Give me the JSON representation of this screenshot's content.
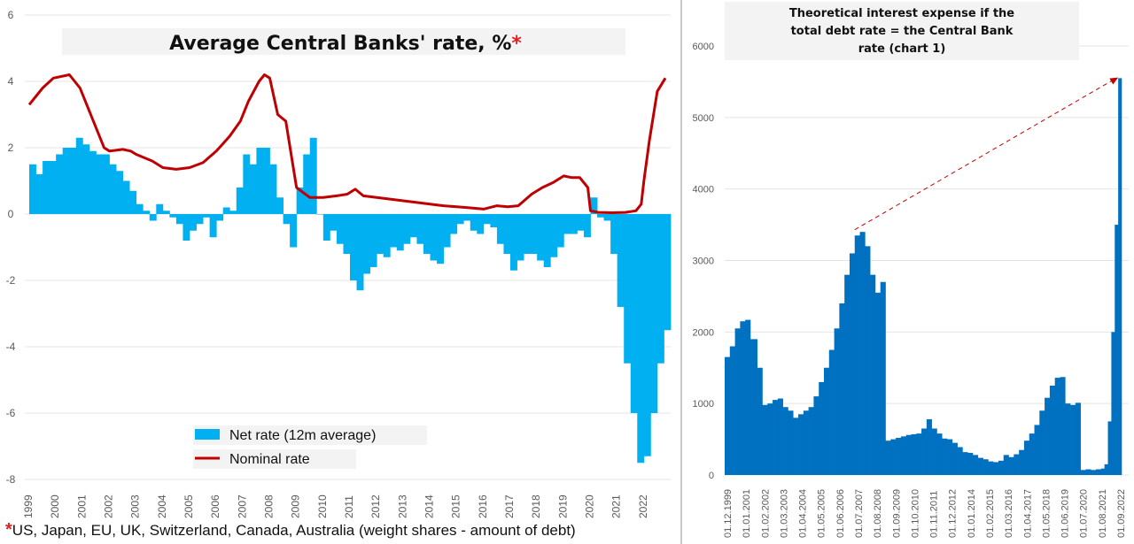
{
  "chart_data": [
    {
      "type": "bar",
      "title": "Average Central Banks' rate, %",
      "title_marker": "*",
      "footnote_marker": "*",
      "footnote": "US, Japan, EU, UK, Switzerland, Canada, Australia (weight shares - amount of debt)",
      "ylim": [
        -8,
        6
      ],
      "y_ticks": [
        "6",
        "4",
        "2",
        "0",
        "-2",
        "-4",
        "-6",
        "-8"
      ],
      "x_ticks": [
        "1999",
        "2000",
        "2001",
        "2002",
        "2003",
        "2004",
        "2005",
        "2006",
        "2007",
        "2008",
        "2009",
        "2010",
        "2011",
        "2012",
        "2013",
        "2014",
        "2015",
        "2016",
        "2017",
        "2018",
        "2019",
        "2020",
        "2021",
        "2022"
      ],
      "grid": true,
      "legend_position": "bottom-center",
      "series": [
        {
          "name": "Net rate (12m average)",
          "kind": "bar",
          "color": "#00b0f0",
          "x": [
            1999.0,
            1999.25,
            1999.5,
            1999.75,
            2000.0,
            2000.25,
            2000.5,
            2000.75,
            2001.0,
            2001.25,
            2001.5,
            2001.75,
            2002.0,
            2002.25,
            2002.5,
            2002.75,
            2003.0,
            2003.25,
            2003.5,
            2003.75,
            2004.0,
            2004.25,
            2004.5,
            2004.75,
            2005.0,
            2005.25,
            2005.5,
            2005.75,
            2006.0,
            2006.25,
            2006.5,
            2006.75,
            2007.0,
            2007.25,
            2007.5,
            2007.75,
            2008.0,
            2008.25,
            2008.5,
            2008.75,
            2009.0,
            2009.25,
            2009.5,
            2009.75,
            2010.0,
            2010.25,
            2010.5,
            2010.75,
            2011.0,
            2011.25,
            2011.5,
            2011.75,
            2012.0,
            2012.25,
            2012.5,
            2012.75,
            2013.0,
            2013.25,
            2013.5,
            2013.75,
            2014.0,
            2014.25,
            2014.5,
            2014.75,
            2015.0,
            2015.25,
            2015.5,
            2015.75,
            2016.0,
            2016.25,
            2016.5,
            2016.75,
            2017.0,
            2017.25,
            2017.5,
            2017.75,
            2018.0,
            2018.25,
            2018.5,
            2018.75,
            2019.0,
            2019.25,
            2019.5,
            2019.75,
            2020.0,
            2020.25,
            2020.5,
            2020.75,
            2021.0,
            2021.25,
            2021.5,
            2021.75,
            2022.0,
            2022.25,
            2022.5,
            2022.75
          ],
          "values": [
            1.5,
            1.2,
            1.6,
            1.6,
            1.8,
            2.0,
            2.0,
            2.3,
            2.1,
            1.9,
            1.8,
            1.8,
            1.5,
            1.3,
            1.0,
            0.7,
            0.3,
            0.1,
            -0.2,
            0.3,
            0.1,
            -0.1,
            -0.3,
            -0.8,
            -0.5,
            -0.3,
            -0.1,
            -0.7,
            -0.2,
            0.2,
            0.1,
            0.8,
            1.8,
            1.5,
            2.0,
            2.0,
            1.5,
            0.5,
            -0.3,
            -1.0,
            0.8,
            1.8,
            2.3,
            0.0,
            -0.8,
            -0.5,
            -0.9,
            -1.2,
            -2.0,
            -2.3,
            -1.8,
            -1.6,
            -1.2,
            -1.3,
            -1.0,
            -1.1,
            -0.9,
            -0.7,
            -0.9,
            -1.2,
            -1.4,
            -1.5,
            -1.0,
            -0.6,
            -0.3,
            -0.2,
            -0.5,
            -0.6,
            -0.3,
            -0.4,
            -0.9,
            -1.2,
            -1.7,
            -1.4,
            -1.2,
            -1.2,
            -1.4,
            -1.6,
            -1.3,
            -1.0,
            -0.6,
            -0.6,
            -0.5,
            -0.7,
            0.5,
            -0.1,
            -0.2,
            -1.2,
            -2.8,
            -4.5,
            -6.0,
            -7.5,
            -7.3,
            -6.0,
            -4.5,
            -3.5
          ]
        },
        {
          "name": "Nominal rate",
          "kind": "line",
          "color": "#c00000",
          "x": [
            1999.0,
            1999.5,
            1999.9,
            2000.5,
            2000.9,
            2001.3,
            2001.8,
            2002.0,
            2002.5,
            2002.8,
            2003.0,
            2003.3,
            2003.6,
            2004.0,
            2004.5,
            2005.0,
            2005.5,
            2006.0,
            2006.5,
            2006.9,
            2007.2,
            2007.6,
            2007.8,
            2008.0,
            2008.3,
            2008.6,
            2009.0,
            2009.5,
            2010.0,
            2010.5,
            2010.9,
            2011.2,
            2011.5,
            2012.0,
            2012.5,
            2013.0,
            2013.5,
            2014.0,
            2014.5,
            2015.0,
            2015.3,
            2015.6,
            2016.0,
            2016.5,
            2016.9,
            2017.3,
            2017.8,
            2018.2,
            2018.6,
            2019.0,
            2019.3,
            2019.6,
            2019.9,
            2020.0,
            2020.3,
            2020.8,
            2021.3,
            2021.7,
            2021.9,
            2022.0,
            2022.2,
            2022.5,
            2022.8
          ],
          "values": [
            3.3,
            3.8,
            4.1,
            4.2,
            3.8,
            3.0,
            2.0,
            1.9,
            1.95,
            1.9,
            1.8,
            1.7,
            1.6,
            1.4,
            1.35,
            1.4,
            1.55,
            1.9,
            2.35,
            2.8,
            3.4,
            4.0,
            4.2,
            4.1,
            3.0,
            2.8,
            0.8,
            0.5,
            0.5,
            0.55,
            0.6,
            0.75,
            0.55,
            0.5,
            0.45,
            0.4,
            0.35,
            0.3,
            0.25,
            0.22,
            0.2,
            0.18,
            0.15,
            0.25,
            0.22,
            0.25,
            0.6,
            0.8,
            0.95,
            1.15,
            1.1,
            1.1,
            0.8,
            0.1,
            0.05,
            0.04,
            0.05,
            0.1,
            0.3,
            1.0,
            2.2,
            3.7,
            4.1
          ]
        }
      ]
    },
    {
      "type": "bar",
      "title_lines": [
        "Theoretical interest expense if the",
        "total debt rate = the Central Bank",
        "rate (chart 1)"
      ],
      "ylim": [
        0,
        6000
      ],
      "y_ticks": [
        "6000",
        "5000",
        "4000",
        "3000",
        "2000",
        "1000",
        "0"
      ],
      "x_ticks": [
        "01.12.1999",
        "01.01.2001",
        "01.02.2002",
        "01.03.2003",
        "01.04.2004",
        "01.05.2005",
        "01.06.2006",
        "01.07.2007",
        "01.08.2008",
        "01.09.2009",
        "01.10.2010",
        "01.11.2011",
        "01.12.2012",
        "01.01.2014",
        "01.02.2015",
        "01.03.2016",
        "01.04.2017",
        "01.05.2018",
        "01.06.2019",
        "01.07.2020",
        "01.08.2021",
        "01.09.2022"
      ],
      "grid": true,
      "series": [
        {
          "name": "",
          "kind": "bar",
          "color": "#0070c0",
          "x": [
            1999.9,
            2000.2,
            2000.5,
            2000.8,
            2001.1,
            2001.4,
            2001.8,
            2002.1,
            2002.4,
            2002.7,
            2003.0,
            2003.3,
            2003.6,
            2003.9,
            2004.2,
            2004.5,
            2004.8,
            2005.1,
            2005.4,
            2005.7,
            2006.0,
            2006.3,
            2006.6,
            2006.9,
            2007.2,
            2007.5,
            2007.8,
            2008.1,
            2008.4,
            2008.7,
            2009.0,
            2009.3,
            2009.6,
            2009.9,
            2010.2,
            2010.5,
            2010.8,
            2011.1,
            2011.4,
            2011.7,
            2012.0,
            2012.3,
            2012.6,
            2012.9,
            2013.2,
            2013.5,
            2013.8,
            2014.1,
            2014.4,
            2014.7,
            2015.0,
            2015.3,
            2015.6,
            2015.9,
            2016.2,
            2016.5,
            2016.8,
            2017.1,
            2017.4,
            2017.7,
            2018.0,
            2018.3,
            2018.6,
            2018.9,
            2019.2,
            2019.5,
            2019.8,
            2020.1,
            2020.4,
            2020.7,
            2021.0,
            2021.3,
            2021.6,
            2021.9,
            2022.1,
            2022.3,
            2022.5,
            2022.7,
            2022.9
          ],
          "values": [
            1650,
            1800,
            2050,
            2150,
            2170,
            1900,
            1500,
            980,
            1000,
            1050,
            1070,
            950,
            900,
            800,
            850,
            900,
            950,
            1100,
            1300,
            1500,
            1750,
            2050,
            2400,
            2800,
            3100,
            3350,
            3400,
            3200,
            2800,
            2550,
            2700,
            480,
            500,
            520,
            540,
            560,
            570,
            580,
            650,
            780,
            650,
            580,
            510,
            500,
            450,
            390,
            320,
            310,
            280,
            240,
            220,
            190,
            180,
            200,
            280,
            250,
            290,
            350,
            480,
            580,
            700,
            900,
            1080,
            1250,
            1360,
            1370,
            1000,
            980,
            1010,
            70,
            80,
            70,
            80,
            90,
            150,
            750,
            2000,
            3500,
            5550
          ]
        }
      ],
      "annotation": "trend-arrow",
      "arrow_color": "#c00000"
    }
  ]
}
